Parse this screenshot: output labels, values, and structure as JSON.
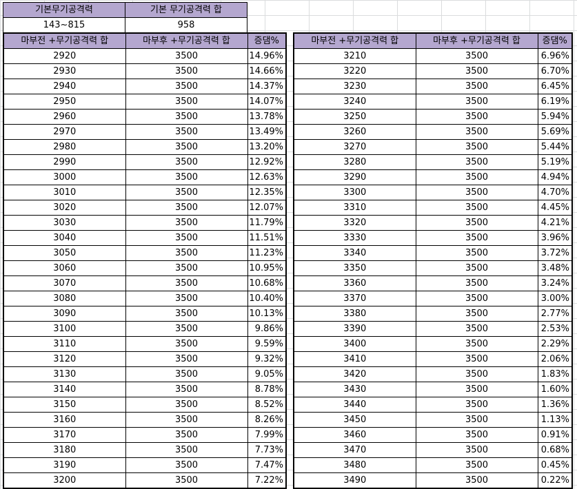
{
  "summary": {
    "headers": [
      "기본무기공격력",
      "기본 무기공격력 합"
    ],
    "values": [
      "143~815",
      "958"
    ]
  },
  "table": {
    "headers": [
      "마부전 +무기공격력 합",
      "마부후 +무기공격력 합",
      "증댐%"
    ]
  },
  "left_rows": [
    [
      "2920",
      "3500",
      "14.96%"
    ],
    [
      "2930",
      "3500",
      "14.66%"
    ],
    [
      "2940",
      "3500",
      "14.37%"
    ],
    [
      "2950",
      "3500",
      "14.07%"
    ],
    [
      "2960",
      "3500",
      "13.78%"
    ],
    [
      "2970",
      "3500",
      "13.49%"
    ],
    [
      "2980",
      "3500",
      "13.20%"
    ],
    [
      "2990",
      "3500",
      "12.92%"
    ],
    [
      "3000",
      "3500",
      "12.63%"
    ],
    [
      "3010",
      "3500",
      "12.35%"
    ],
    [
      "3020",
      "3500",
      "12.07%"
    ],
    [
      "3030",
      "3500",
      "11.79%"
    ],
    [
      "3040",
      "3500",
      "11.51%"
    ],
    [
      "3050",
      "3500",
      "11.23%"
    ],
    [
      "3060",
      "3500",
      "10.95%"
    ],
    [
      "3070",
      "3500",
      "10.68%"
    ],
    [
      "3080",
      "3500",
      "10.40%"
    ],
    [
      "3090",
      "3500",
      "10.13%"
    ],
    [
      "3100",
      "3500",
      "9.86%"
    ],
    [
      "3110",
      "3500",
      "9.59%"
    ],
    [
      "3120",
      "3500",
      "9.32%"
    ],
    [
      "3130",
      "3500",
      "9.05%"
    ],
    [
      "3140",
      "3500",
      "8.78%"
    ],
    [
      "3150",
      "3500",
      "8.52%"
    ],
    [
      "3160",
      "3500",
      "8.26%"
    ],
    [
      "3170",
      "3500",
      "7.99%"
    ],
    [
      "3180",
      "3500",
      "7.73%"
    ],
    [
      "3190",
      "3500",
      "7.47%"
    ],
    [
      "3200",
      "3500",
      "7.22%"
    ]
  ],
  "right_rows": [
    [
      "3210",
      "3500",
      "6.96%"
    ],
    [
      "3220",
      "3500",
      "6.70%"
    ],
    [
      "3230",
      "3500",
      "6.45%"
    ],
    [
      "3240",
      "3500",
      "6.19%"
    ],
    [
      "3250",
      "3500",
      "5.94%"
    ],
    [
      "3260",
      "3500",
      "5.69%"
    ],
    [
      "3270",
      "3500",
      "5.44%"
    ],
    [
      "3280",
      "3500",
      "5.19%"
    ],
    [
      "3290",
      "3500",
      "4.94%"
    ],
    [
      "3300",
      "3500",
      "4.70%"
    ],
    [
      "3310",
      "3500",
      "4.45%"
    ],
    [
      "3320",
      "3500",
      "4.21%"
    ],
    [
      "3330",
      "3500",
      "3.96%"
    ],
    [
      "3340",
      "3500",
      "3.72%"
    ],
    [
      "3350",
      "3500",
      "3.48%"
    ],
    [
      "3360",
      "3500",
      "3.24%"
    ],
    [
      "3370",
      "3500",
      "3.00%"
    ],
    [
      "3380",
      "3500",
      "2.77%"
    ],
    [
      "3390",
      "3500",
      "2.53%"
    ],
    [
      "3400",
      "3500",
      "2.29%"
    ],
    [
      "3410",
      "3500",
      "2.06%"
    ],
    [
      "3420",
      "3500",
      "1.83%"
    ],
    [
      "3430",
      "3500",
      "1.60%"
    ],
    [
      "3440",
      "3500",
      "1.36%"
    ],
    [
      "3450",
      "3500",
      "1.13%"
    ],
    [
      "3460",
      "3500",
      "0.91%"
    ],
    [
      "3470",
      "3500",
      "0.68%"
    ],
    [
      "3480",
      "3500",
      "0.45%"
    ],
    [
      "3490",
      "3500",
      "0.22%"
    ]
  ],
  "colors": {
    "header_bg": "#b4a7cf",
    "gridline": "#dadcdd",
    "border": "#000000"
  }
}
